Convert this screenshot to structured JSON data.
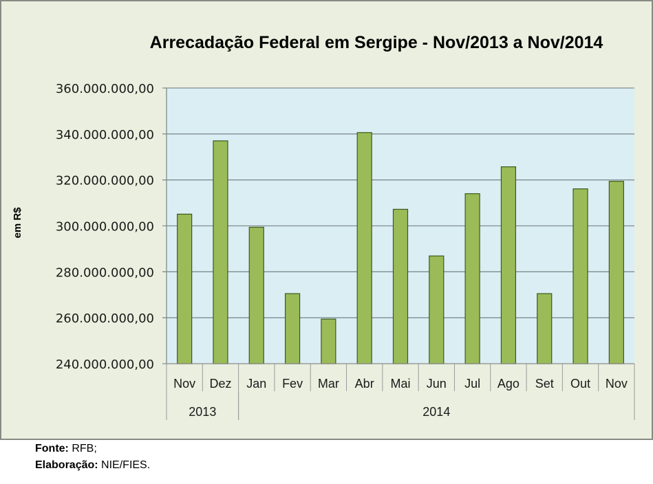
{
  "chart_data": {
    "type": "bar",
    "title": "Arrecadação Federal em Sergipe - Nov/2013 a Nov/2014",
    "ylabel": "em R$",
    "xlabel": "",
    "ylim": [
      240000000,
      360000000
    ],
    "yticks": [
      240000000,
      260000000,
      280000000,
      300000000,
      320000000,
      340000000,
      360000000
    ],
    "ytick_labels": [
      "240.000.000,00",
      "260.000.000,00",
      "280.000.000,00",
      "300.000.000,00",
      "320.000.000,00",
      "340.000.000,00",
      "360.000.000,00"
    ],
    "grid": true,
    "categories": [
      "Nov",
      "Dez",
      "Jan",
      "Fev",
      "Mar",
      "Abr",
      "Mai",
      "Jun",
      "Jul",
      "Ago",
      "Set",
      "Out",
      "Nov"
    ],
    "year_groups": [
      {
        "label": "2013",
        "count": 2
      },
      {
        "label": "2014",
        "count": 11
      }
    ],
    "values": [
      305100000,
      337000000,
      299400000,
      270500000,
      259400000,
      340600000,
      307200000,
      286900000,
      314000000,
      325700000,
      270500000,
      316100000,
      319400000
    ],
    "colors": {
      "bar_fill": "#9bbb59",
      "bar_stroke": "#3a5a1c",
      "plot_bg": "#dbeef4",
      "chart_bg": "#ebefdf",
      "grid": "#7f8c8d"
    },
    "legend": "none"
  },
  "footer": {
    "source_label": "Fonte:",
    "source_value": "RFB;",
    "credit_label": "Elaboração:",
    "credit_value": "NIE/FIES."
  }
}
